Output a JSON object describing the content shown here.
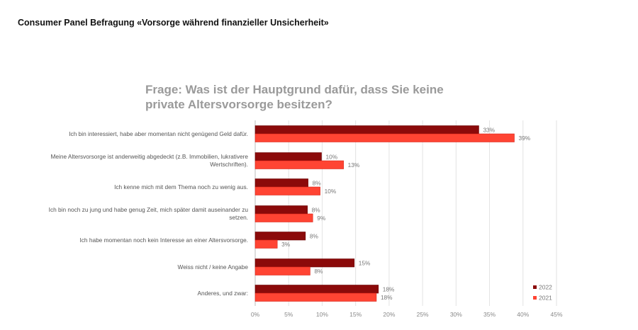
{
  "page_title": "Consumer Panel Befragung «Vorsorge während finanzieller Unsicherheit»",
  "chart_data": {
    "type": "bar",
    "orientation": "horizontal",
    "title": "Frage: Was ist der Hauptgrund dafür, dass Sie keine private Altersvorsorge besitzen?",
    "categories": [
      "Ich bin interessiert, habe aber momentan nicht genügend Geld dafür.",
      "Meine Altersvorsorge ist anderweitig abgedeckt (z.B. Immobilien, lukrativere Wertschriften).",
      "Ich kenne mich mit dem Thema noch zu wenig aus.",
      "Ich bin noch zu jung und habe genug Zeit, mich später damit auseinander zu setzen.",
      "Ich habe momentan noch kein Interesse an einer Altersvorsorge.",
      "Weiss nicht / keine Angabe",
      "Anderes, und zwar:"
    ],
    "series": [
      {
        "name": "2022",
        "color": "#8b0a0a",
        "values": [
          33.4,
          9.9,
          7.9,
          7.8,
          7.5,
          14.8,
          18.4
        ],
        "labels": [
          "33%",
          "10%",
          "8%",
          "8%",
          "8%",
          "15%",
          "18%"
        ]
      },
      {
        "name": "2021",
        "color": "#ff4433",
        "values": [
          38.7,
          13.2,
          9.7,
          8.6,
          3.3,
          8.2,
          18.1
        ],
        "labels": [
          "39%",
          "13%",
          "10%",
          "9%",
          "3%",
          "8%",
          "18%"
        ]
      }
    ],
    "xlim": [
      0,
      45
    ],
    "xticks": [
      "0%",
      "5%",
      "10%",
      "15%",
      "20%",
      "25%",
      "30%",
      "35%",
      "40%",
      "45%"
    ],
    "grid": true,
    "legend": "bottom-right"
  }
}
